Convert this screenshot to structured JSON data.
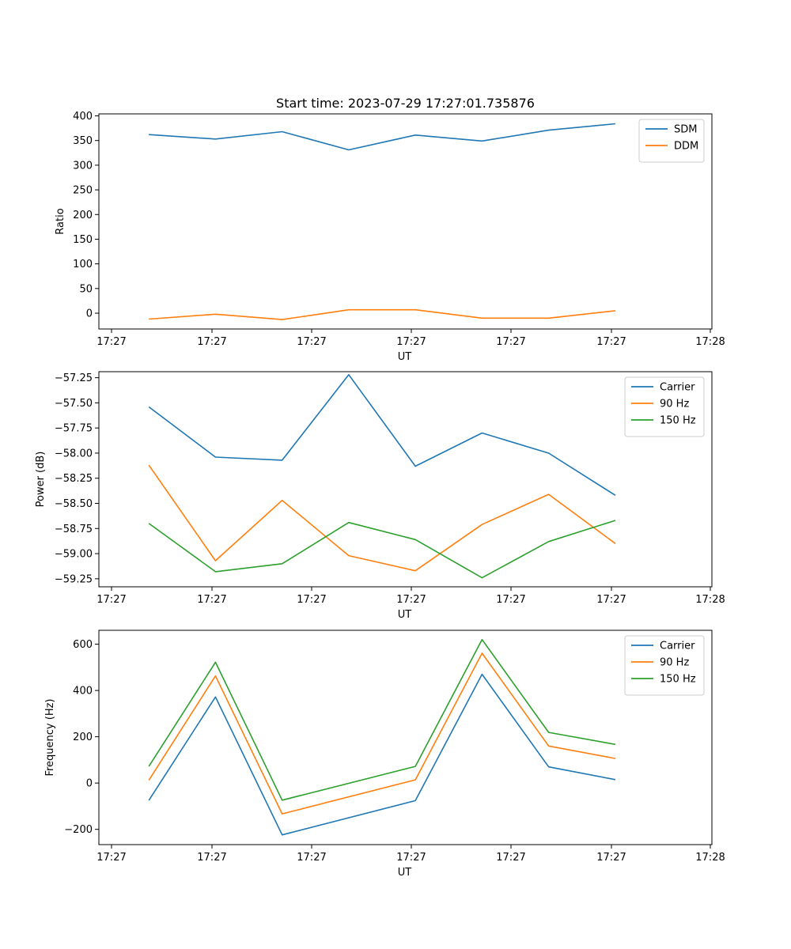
{
  "chart_data": [
    {
      "type": "line",
      "title": "Start time: 2023-07-29 17:27:01.735876",
      "xlabel": "UT",
      "ylabel": "Ratio",
      "x": [
        0,
        1,
        2,
        3,
        4,
        5,
        6,
        7
      ],
      "xlim": [
        -0.75,
        8.45
      ],
      "ylim": [
        -32,
        404
      ],
      "xtick_labels": [
        "17:27",
        "17:27",
        "17:27",
        "17:27",
        "17:27",
        "17:27",
        "17:27"
      ],
      "xtick_end_label": "17:28",
      "yticks": [
        0,
        50,
        100,
        150,
        200,
        250,
        300,
        350,
        400
      ],
      "ytick_labels": [
        "0",
        "50",
        "100",
        "150",
        "200",
        "250",
        "300",
        "350",
        "400"
      ],
      "legend": "top-right",
      "series": [
        {
          "name": "SDM",
          "color": "#1f77b4",
          "values": [
            362,
            353,
            368,
            331,
            361,
            349,
            371,
            384
          ]
        },
        {
          "name": "DDM",
          "color": "#ff7f0e",
          "values": [
            -12,
            -2,
            -13,
            7,
            7,
            -10,
            -10,
            5
          ]
        }
      ]
    },
    {
      "type": "line",
      "xlabel": "UT",
      "ylabel": "Power (dB)",
      "x": [
        0,
        1,
        2,
        3,
        4,
        5,
        6,
        7
      ],
      "xlim": [
        -0.75,
        8.45
      ],
      "ylim": [
        -59.33,
        -57.19
      ],
      "xtick_labels": [
        "17:27",
        "17:27",
        "17:27",
        "17:27",
        "17:27",
        "17:27",
        "17:27"
      ],
      "xtick_end_label": "17:28",
      "yticks": [
        -59.25,
        -59.0,
        -58.75,
        -58.5,
        -58.25,
        -58.0,
        -57.75,
        -57.5,
        -57.25
      ],
      "ytick_labels": [
        "−59.25",
        "−59.00",
        "−58.75",
        "−58.50",
        "−58.25",
        "−58.00",
        "−57.75",
        "−57.50",
        "−57.25"
      ],
      "legend": "top-right",
      "series": [
        {
          "name": "Carrier",
          "color": "#1f77b4",
          "values": [
            -57.54,
            -58.04,
            -58.07,
            -57.22,
            -58.13,
            -57.8,
            -58.0,
            -58.42
          ]
        },
        {
          "name": "90 Hz",
          "color": "#ff7f0e",
          "values": [
            -58.12,
            -59.07,
            -58.47,
            -59.02,
            -59.17,
            -58.71,
            -58.41,
            -58.9
          ]
        },
        {
          "name": "150 Hz",
          "color": "#2ca02c",
          "values": [
            -58.7,
            -59.18,
            -59.1,
            -58.69,
            -58.86,
            -59.24,
            -58.88,
            -58.67
          ]
        }
      ]
    },
    {
      "type": "line",
      "xlabel": "UT",
      "ylabel": "Frequency (Hz)",
      "x": [
        0,
        1,
        2,
        3,
        4,
        5,
        6,
        7
      ],
      "xlim": [
        -0.75,
        8.45
      ],
      "ylim": [
        -266,
        660
      ],
      "xtick_labels": [
        "17:27",
        "17:27",
        "17:27",
        "17:27",
        "17:27",
        "17:27",
        "17:27"
      ],
      "xtick_end_label": "17:28",
      "yticks": [
        -200,
        0,
        200,
        400,
        600
      ],
      "ytick_labels": [
        "−200",
        "0",
        "200",
        "400",
        "600"
      ],
      "legend": "top-right",
      "series": [
        {
          "name": "Carrier",
          "color": "#1f77b4",
          "values": [
            -75,
            372,
            -224,
            null,
            -76,
            470,
            70,
            15
          ]
        },
        {
          "name": "90 Hz",
          "color": "#ff7f0e",
          "values": [
            12,
            463,
            -133,
            null,
            14,
            561,
            160,
            106
          ]
        },
        {
          "name": "150 Hz",
          "color": "#2ca02c",
          "values": [
            72,
            522,
            -74,
            null,
            72,
            620,
            219,
            167
          ]
        }
      ]
    }
  ]
}
